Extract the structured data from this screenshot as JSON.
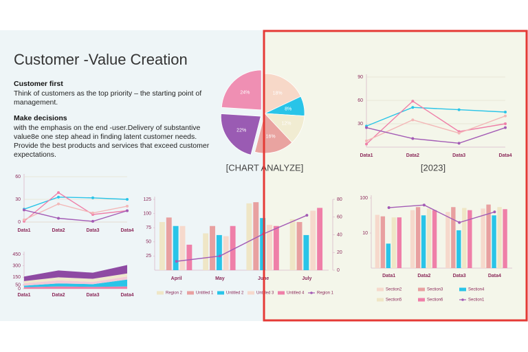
{
  "slide": {
    "title": "Customer -Value Creation",
    "sections": [
      {
        "heading": "Customer first",
        "lines": [
          "Think of customers as the top priority    – the starting point of",
          "management."
        ]
      },
      {
        "heading": "Make decisions",
        "lines": [
          "with the emphasis on the end  -user.Delivery  of substantive",
          "value8e  one step ahead in finding latent customer needs.",
          "Provide the best products and services that exceed customer",
          "expectations."
        ]
      }
    ]
  },
  "chart_data": [
    {
      "type": "pie",
      "title": "[CHART ANALYZE]",
      "values": [
        18,
        8,
        12,
        16,
        22,
        24
      ],
      "value_labels": [
        "18%",
        "8%",
        "12%",
        "16%",
        "22%",
        "24%"
      ],
      "colors": [
        "#f7d8c8",
        "#29c4e8",
        "#f1ecd2",
        "#e9a3a0",
        "#9a5bb3",
        "#ef8fb3"
      ]
    },
    {
      "type": "line",
      "title": "[2023]",
      "categories": [
        "Data1",
        "Data2",
        "Data3",
        "Data4"
      ],
      "ylim": [
        0,
        90
      ],
      "yticks": [
        30,
        60,
        90
      ],
      "grid": true,
      "series": [
        {
          "color": "#29c4e8",
          "values": [
            27,
            51,
            48,
            45
          ]
        },
        {
          "color": "#ef7fa8",
          "values": [
            4,
            59,
            20,
            30
          ]
        },
        {
          "color": "#f3b7b7",
          "values": [
            8,
            35,
            18,
            40
          ]
        },
        {
          "color": "#a35bb5",
          "values": [
            25,
            11,
            5,
            25
          ]
        }
      ]
    },
    {
      "type": "line",
      "categories": [
        "Data1",
        "Data2",
        "Data3",
        "Data4"
      ],
      "ylim": [
        0,
        60
      ],
      "yticks": [
        0,
        30,
        60
      ],
      "grid": true,
      "series": [
        {
          "color": "#29c4e8",
          "values": [
            17,
            33,
            32,
            30
          ]
        },
        {
          "color": "#ef7fa8",
          "values": [
            1,
            39,
            10,
            15
          ]
        },
        {
          "color": "#f3b7b7",
          "values": [
            3,
            24,
            12,
            21
          ]
        },
        {
          "color": "#a35bb5",
          "values": [
            16,
            5,
            1,
            15
          ]
        }
      ]
    },
    {
      "type": "area",
      "categories": [
        "Data1",
        "Data2",
        "Data3",
        "Data4"
      ],
      "ylim": [
        0,
        450
      ],
      "yticks": [
        0,
        50,
        150,
        300,
        450
      ],
      "series": [
        {
          "color": "#ef7fa8",
          "values": [
            20,
            30,
            25,
            30
          ]
        },
        {
          "color": "#29c4e8",
          "values": [
            20,
            40,
            35,
            90
          ]
        },
        {
          "color": "#f3c9d6",
          "values": [
            30,
            40,
            30,
            40
          ]
        },
        {
          "color": "#efe8cc",
          "values": [
            30,
            40,
            40,
            40
          ]
        },
        {
          "color": "#8e4aa3",
          "values": [
            60,
            90,
            80,
            110
          ]
        }
      ]
    },
    {
      "type": "bar",
      "categories": [
        "April",
        "May",
        "June",
        "July"
      ],
      "ylim": [
        0,
        125
      ],
      "yticks": [
        25,
        50,
        75,
        100,
        125
      ],
      "y2lim": [
        0,
        80
      ],
      "y2ticks": [
        0,
        20,
        40,
        60,
        80
      ],
      "series": [
        {
          "name": "Region 2",
          "color": "#efe6c6",
          "values": [
            85,
            65,
            118,
            90
          ]
        },
        {
          "name": "Untitled 1",
          "color": "#e8a0a0",
          "values": [
            93,
            78,
            120,
            85
          ]
        },
        {
          "name": "Untitled 2",
          "color": "#29c4e8",
          "values": [
            78,
            62,
            92,
            62
          ]
        },
        {
          "name": "Untitled 3",
          "color": "#f6d9cc",
          "values": [
            78,
            60,
            80,
            105
          ]
        },
        {
          "name": "Untitled 4",
          "color": "#ef7fa8",
          "values": [
            45,
            78,
            78,
            110
          ]
        },
        {
          "name": "Region 1",
          "type": "line",
          "axis": "y2",
          "color": "#a35bb5",
          "values": [
            10,
            16,
            41,
            62
          ]
        }
      ]
    },
    {
      "type": "bar",
      "categories": [
        "Data1",
        "Data2",
        "Data3",
        "Data4"
      ],
      "ylim": [
        1,
        100
      ],
      "yticks": [
        10,
        100
      ],
      "log_scale": true,
      "series": [
        {
          "name": "Section2",
          "color": "#f6d9cc",
          "values": [
            33,
            45,
            40,
            50
          ]
        },
        {
          "name": "Section3",
          "color": "#e8a0a0",
          "values": [
            30,
            55,
            55,
            65
          ]
        },
        {
          "name": "Section4",
          "color": "#29c4e8",
          "values": [
            5,
            32,
            12,
            32
          ]
        },
        {
          "name": "Section5",
          "color": "#efe6c6",
          "values": [
            28,
            50,
            52,
            55
          ]
        },
        {
          "name": "Section6",
          "color": "#ef7fa8",
          "values": [
            28,
            45,
            45,
            48
          ]
        },
        {
          "name": "Section1",
          "type": "line",
          "color": "#a35bb5",
          "values": [
            53,
            63,
            20,
            40
          ]
        }
      ]
    }
  ]
}
